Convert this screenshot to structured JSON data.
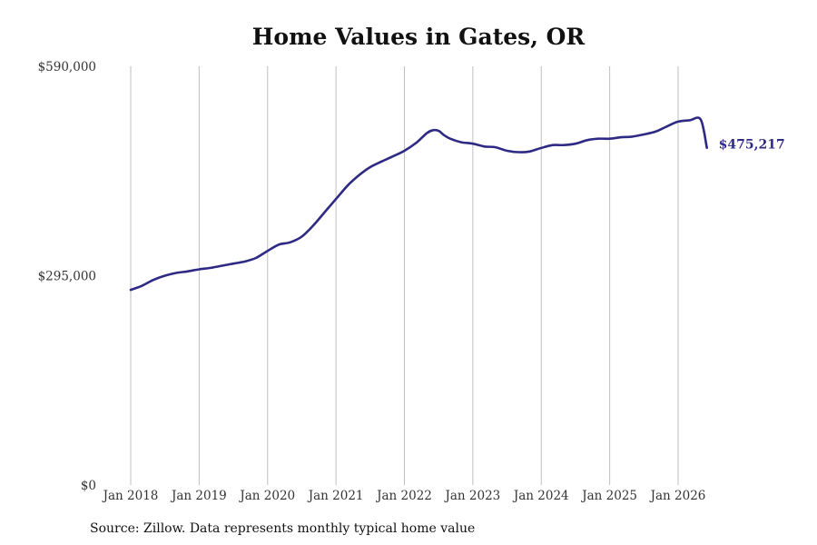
{
  "chart_data": {
    "type": "line",
    "title": "Home Values in Gates, OR",
    "xlabel": "",
    "ylabel": "",
    "xlim": [
      2018.0,
      2026.42
    ],
    "ylim": [
      0,
      590000
    ],
    "x_tick_labels": [
      "Jan 2018",
      "Jan 2019",
      "Jan 2020",
      "Jan 2021",
      "Jan 2022",
      "Jan 2023",
      "Jan 2024",
      "Jan 2025",
      "Jan 2026"
    ],
    "y_tick_labels": [
      "$0",
      "$295,000",
      "$590,000"
    ],
    "y_ticks": [
      0,
      295000,
      590000
    ],
    "grid": "vertical",
    "line_color": "#2e2a84",
    "grid_color": "#bfbfbf",
    "end_label": "$475,217",
    "series": [
      {
        "x": [
          2018.0,
          2018.17,
          2018.33,
          2018.5,
          2018.67,
          2018.83,
          2019.0,
          2019.17,
          2019.33,
          2019.5,
          2019.67,
          2019.83,
          2020.0,
          2020.17,
          2020.33,
          2020.5,
          2020.67,
          2020.83,
          2021.0,
          2021.17,
          2021.33,
          2021.5,
          2021.67,
          2021.83,
          2022.0,
          2022.17,
          2022.33,
          2022.42,
          2022.5,
          2022.58,
          2022.67,
          2022.83,
          2023.0,
          2023.17,
          2023.33,
          2023.5,
          2023.67,
          2023.83,
          2024.0,
          2024.17,
          2024.33,
          2024.5,
          2024.67,
          2024.83,
          2025.0,
          2025.17,
          2025.33,
          2025.5,
          2025.67,
          2025.83,
          2026.0,
          2026.17,
          2026.33,
          2026.42
        ],
        "y": [
          275000,
          281000,
          289000,
          295000,
          299000,
          301000,
          304000,
          306000,
          309000,
          312000,
          315000,
          320000,
          330000,
          339000,
          342000,
          350000,
          366000,
          384000,
          403000,
          422000,
          436000,
          448000,
          456000,
          463000,
          471000,
          482000,
          496000,
          500000,
          499000,
          493000,
          488000,
          483000,
          481000,
          477000,
          476000,
          471000,
          469000,
          470000,
          475000,
          479000,
          479000,
          481000,
          486000,
          488000,
          488000,
          490000,
          491000,
          494000,
          498000,
          505000,
          512000,
          514000,
          515000,
          475217
        ]
      }
    ]
  },
  "source_note": "Source: Zillow. Data represents monthly typical home value"
}
